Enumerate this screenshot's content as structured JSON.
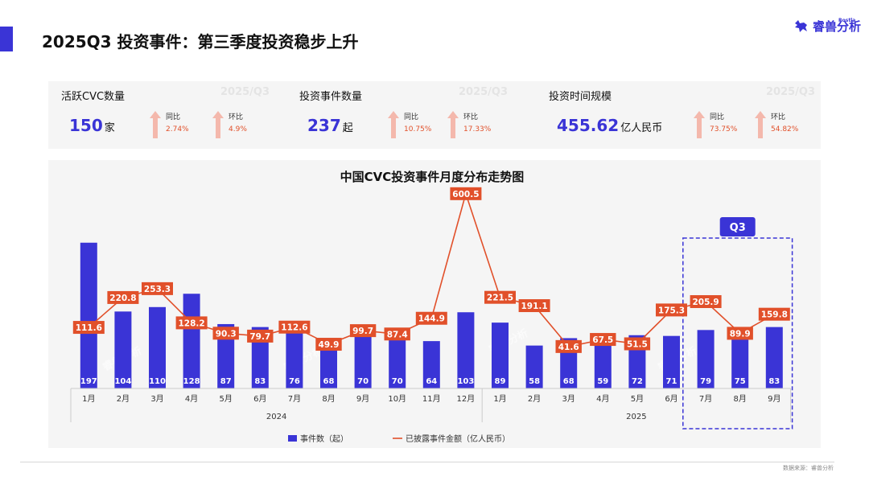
{
  "header": {
    "title": "2025Q3 投资事件：第三季度投资稳步上升",
    "brand_name": "睿兽分析",
    "brand_sub": "Rostla",
    "accent_color": "#3a34d6"
  },
  "kpis": [
    {
      "label": "活跃CVC数量",
      "year": "2025/Q3",
      "value": "150",
      "unit": "家",
      "yoy_label": "同比",
      "yoy": "2.74%",
      "qoq_label": "环比",
      "qoq": "4.9%"
    },
    {
      "label": "投资事件数量",
      "year": "2025/Q3",
      "value": "237",
      "unit": "起",
      "yoy_label": "同比",
      "yoy": "10.75%",
      "qoq_label": "环比",
      "qoq": "17.33%"
    },
    {
      "label": "投资时间规模",
      "year": "2025/Q3",
      "value": "455.62",
      "unit": "亿人民币",
      "yoy_label": "同比",
      "yoy": "73.75%",
      "qoq_label": "环比",
      "qoq": "54.82%"
    }
  ],
  "footer": {
    "source": "数据来源：睿兽分析"
  },
  "watermark": "睿兽分析",
  "chart_data": {
    "type": "bar",
    "title": "中国CVC投资事件月度分布走势图",
    "categories": [
      "1月",
      "2月",
      "3月",
      "4月",
      "5月",
      "6月",
      "7月",
      "8月",
      "9月",
      "10月",
      "11月",
      "12月",
      "1月",
      "2月",
      "3月",
      "4月",
      "5月",
      "6月",
      "7月",
      "8月",
      "9月"
    ],
    "year_groups": [
      {
        "label": "2024",
        "start": 0,
        "end": 11
      },
      {
        "label": "2025",
        "start": 12,
        "end": 20
      }
    ],
    "highlight": {
      "label": "Q3",
      "start": 18,
      "end": 20
    },
    "series": [
      {
        "name": "事件数（起）",
        "kind": "bar",
        "color": "#3a34d6",
        "values": [
          197,
          104,
          110,
          128,
          87,
          83,
          76,
          68,
          70,
          70,
          64,
          103,
          89,
          58,
          68,
          59,
          72,
          71,
          79,
          75,
          83
        ]
      },
      {
        "name": "已披露事件金额（亿人民币）",
        "kind": "line",
        "color": "#e1502a",
        "values": [
          111.6,
          220.8,
          253.3,
          128.2,
          90.3,
          79.7,
          112.6,
          49.9,
          99.7,
          87.4,
          144.9,
          600.5,
          221.5,
          191.1,
          41.6,
          67.5,
          51.5,
          175.3,
          205.9,
          89.9,
          159.8
        ]
      }
    ],
    "grid": false,
    "legend_position": "bottom-center"
  }
}
